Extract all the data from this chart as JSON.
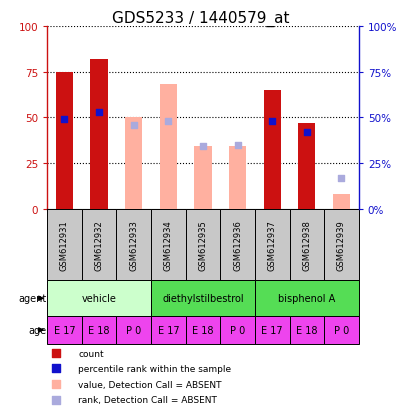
{
  "title": "GDS5233 / 1440579_at",
  "samples": [
    "GSM612931",
    "GSM612932",
    "GSM612933",
    "GSM612934",
    "GSM612935",
    "GSM612936",
    "GSM612937",
    "GSM612938",
    "GSM612939"
  ],
  "count_values": [
    75,
    82,
    null,
    null,
    null,
    null,
    65,
    47,
    null
  ],
  "rank_values": [
    49,
    53,
    null,
    null,
    null,
    null,
    48,
    42,
    null
  ],
  "absent_count_values": [
    null,
    null,
    50,
    68,
    34,
    34,
    null,
    null,
    8
  ],
  "absent_rank_values": [
    null,
    null,
    46,
    48,
    34,
    35,
    null,
    null,
    17
  ],
  "ages": [
    "E 17",
    "E 18",
    "P 0",
    "E 17",
    "E 18",
    "P 0",
    "E 17",
    "E 18",
    "P 0"
  ],
  "age_color": "#ee44ee",
  "ylim": [
    0,
    100
  ],
  "color_count": "#cc1111",
  "color_rank": "#1111cc",
  "color_absent_count": "#ffb0a0",
  "color_absent_rank": "#aaaadd",
  "agent_vehicle_color": "#ccffcc",
  "agent_diethyl_color": "#55dd55",
  "agent_bisphenol_color": "#55dd55",
  "gsm_box_color": "#c8c8c8",
  "title_fontsize": 11,
  "rank_marker_size": 25
}
